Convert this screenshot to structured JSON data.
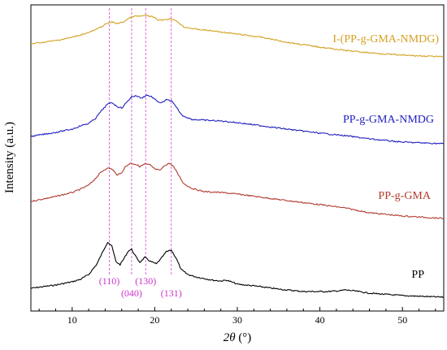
{
  "chart_data": {
    "type": "line",
    "xlabel_italic": "2θ",
    "xlabel_unit": " (°)",
    "ylabel": "Intensity (a.u.)",
    "xlim": [
      5,
      55
    ],
    "x_ticks": [
      10,
      20,
      30,
      40,
      50
    ],
    "y_ticks_shown": false,
    "grid": false,
    "series": [
      {
        "name": "PP",
        "color": "#000000",
        "points": [
          [
            5,
            355
          ],
          [
            8,
            351
          ],
          [
            10,
            347
          ],
          [
            11,
            344
          ],
          [
            12,
            338
          ],
          [
            13,
            325
          ],
          [
            13.8,
            308
          ],
          [
            14.3,
            298
          ],
          [
            14.8,
            303
          ],
          [
            15.3,
            322
          ],
          [
            15.8,
            326
          ],
          [
            16.3,
            318
          ],
          [
            16.8,
            309
          ],
          [
            17.2,
            307
          ],
          [
            17.7,
            316
          ],
          [
            18.2,
            323
          ],
          [
            18.8,
            317
          ],
          [
            19.5,
            322
          ],
          [
            20.2,
            325
          ],
          [
            20.8,
            318
          ],
          [
            21.4,
            310
          ],
          [
            22,
            308
          ],
          [
            22.6,
            318
          ],
          [
            23.2,
            332
          ],
          [
            24,
            338
          ],
          [
            25,
            341
          ],
          [
            26,
            343
          ],
          [
            27,
            345
          ],
          [
            28,
            346
          ],
          [
            28.7,
            345
          ],
          [
            29.5,
            348
          ],
          [
            30,
            350
          ],
          [
            32,
            352
          ],
          [
            35,
            356
          ],
          [
            38,
            359
          ],
          [
            41,
            359
          ],
          [
            42.5,
            358
          ],
          [
            43,
            357
          ],
          [
            44,
            358
          ],
          [
            46,
            361
          ],
          [
            50,
            364
          ],
          [
            55,
            366
          ]
        ]
      },
      {
        "name": "PP-g-GMA",
        "color": "#b03a2e",
        "points": [
          [
            5,
            248
          ],
          [
            8,
            242
          ],
          [
            10,
            237
          ],
          [
            11,
            233
          ],
          [
            12,
            228
          ],
          [
            12.8,
            220
          ],
          [
            13.5,
            212
          ],
          [
            14.2,
            207
          ],
          [
            14.8,
            208
          ],
          [
            15.4,
            215
          ],
          [
            15.9,
            214
          ],
          [
            16.4,
            206
          ],
          [
            17,
            201
          ],
          [
            17.6,
            202
          ],
          [
            18.2,
            205
          ],
          [
            18.8,
            202
          ],
          [
            19.4,
            203
          ],
          [
            20,
            208
          ],
          [
            20.6,
            210
          ],
          [
            21.2,
            204
          ],
          [
            21.7,
            201
          ],
          [
            22.2,
            204
          ],
          [
            22.8,
            214
          ],
          [
            23.5,
            226
          ],
          [
            24.5,
            232
          ],
          [
            26,
            236
          ],
          [
            28,
            237
          ],
          [
            30,
            239
          ],
          [
            33,
            243
          ],
          [
            36,
            247
          ],
          [
            40,
            252
          ],
          [
            43,
            256
          ],
          [
            46,
            262
          ],
          [
            50,
            266
          ],
          [
            55,
            269
          ]
        ]
      },
      {
        "name": "PP-g-GMA-NMDG",
        "color": "#2020c0",
        "points": [
          [
            5,
            168
          ],
          [
            8,
            163
          ],
          [
            10,
            159
          ],
          [
            11,
            155
          ],
          [
            12,
            152
          ],
          [
            12.8,
            146
          ],
          [
            13.5,
            137
          ],
          [
            14.2,
            129
          ],
          [
            14.8,
            126
          ],
          [
            15.4,
            131
          ],
          [
            16,
            133
          ],
          [
            16.6,
            126
          ],
          [
            17.2,
            119
          ],
          [
            17.8,
            118
          ],
          [
            18.4,
            121
          ],
          [
            19,
            117
          ],
          [
            19.6,
            119
          ],
          [
            20.2,
            124
          ],
          [
            20.8,
            127
          ],
          [
            21.4,
            123
          ],
          [
            22,
            124
          ],
          [
            22.6,
            132
          ],
          [
            23.3,
            142
          ],
          [
            24.5,
            147
          ],
          [
            26,
            148
          ],
          [
            28,
            149
          ],
          [
            30,
            151
          ],
          [
            33,
            155
          ],
          [
            36,
            159
          ],
          [
            40,
            164
          ],
          [
            43,
            167
          ],
          [
            46,
            171
          ],
          [
            50,
            175
          ],
          [
            55,
            177
          ]
        ]
      },
      {
        "name": "I-(PP-g-GMA-NMDG)",
        "color": "#d4a020",
        "points": [
          [
            5,
            54
          ],
          [
            8,
            50
          ],
          [
            10,
            46
          ],
          [
            11,
            43
          ],
          [
            12,
            40
          ],
          [
            13,
            36
          ],
          [
            14,
            30
          ],
          [
            14.8,
            27
          ],
          [
            15.5,
            29
          ],
          [
            16.2,
            27
          ],
          [
            16.8,
            23
          ],
          [
            17.5,
            20
          ],
          [
            18.2,
            20
          ],
          [
            19,
            19
          ],
          [
            19.8,
            21
          ],
          [
            20.5,
            25
          ],
          [
            21.3,
            24
          ],
          [
            22,
            23
          ],
          [
            22.8,
            27
          ],
          [
            23.5,
            33
          ],
          [
            25,
            36
          ],
          [
            27,
            38
          ],
          [
            30,
            42
          ],
          [
            33,
            46
          ],
          [
            36,
            52
          ],
          [
            40,
            58
          ],
          [
            43,
            62
          ],
          [
            46,
            65
          ],
          [
            50,
            68
          ],
          [
            55,
            70
          ]
        ]
      }
    ],
    "peak_lines": [
      {
        "x": 14.5,
        "label": "(110)"
      },
      {
        "x": 17.2,
        "label": "(040)"
      },
      {
        "x": 18.9,
        "label": "(130)"
      },
      {
        "x": 22.0,
        "label": "(131)"
      }
    ],
    "peak_line_color": "#dd55dd"
  }
}
